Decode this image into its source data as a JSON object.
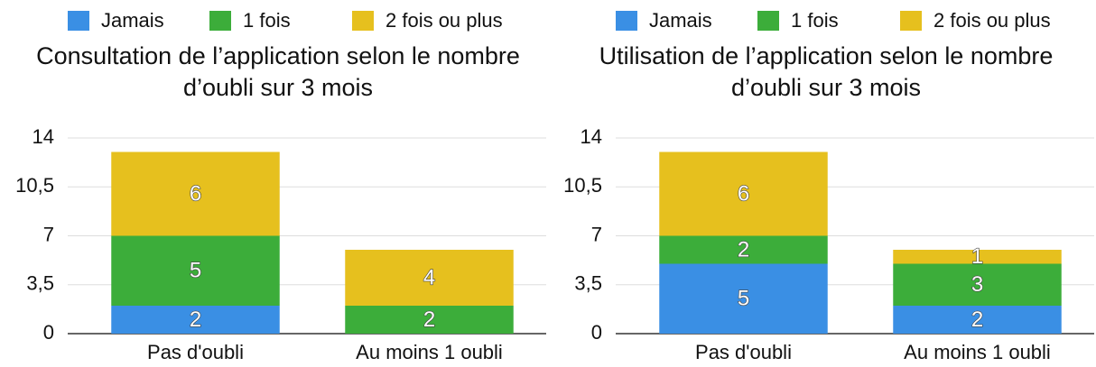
{
  "chart_data": [
    {
      "type": "bar",
      "stacked": true,
      "title": "Consultation de l’application selon le nombre d’oubli sur 3 mois",
      "categories": [
        "Pas d'oubli",
        "Au moins 1 oubli"
      ],
      "series": [
        {
          "name": "Jamais",
          "color": "#3a8fe4",
          "values": [
            2,
            0
          ]
        },
        {
          "name": "1 fois",
          "color": "#3cad3a",
          "values": [
            5,
            2
          ]
        },
        {
          "name": "2 fois ou plus",
          "color": "#e6c01e",
          "values": [
            6,
            4
          ]
        }
      ],
      "ylim": [
        0,
        14
      ],
      "yticks": [
        0,
        {
          "value": 3.5,
          "label": "3,5"
        },
        7,
        {
          "value": 10.5,
          "label": "10,5"
        },
        14
      ],
      "grid": true,
      "legend": "top"
    },
    {
      "type": "bar",
      "stacked": true,
      "title": "Utilisation de l’application selon le nombre d’oubli sur 3 mois",
      "categories": [
        "Pas d'oubli",
        "Au moins 1 oubli"
      ],
      "series": [
        {
          "name": "Jamais",
          "color": "#3a8fe4",
          "values": [
            5,
            2
          ]
        },
        {
          "name": "1 fois",
          "color": "#3cad3a",
          "values": [
            2,
            3
          ]
        },
        {
          "name": "2 fois ou plus",
          "color": "#e6c01e",
          "values": [
            6,
            1
          ]
        }
      ],
      "ylim": [
        0,
        14
      ],
      "yticks": [
        0,
        {
          "value": 3.5,
          "label": "3,5"
        },
        7,
        {
          "value": 10.5,
          "label": "10,5"
        },
        14
      ],
      "grid": true,
      "legend": "top"
    }
  ]
}
